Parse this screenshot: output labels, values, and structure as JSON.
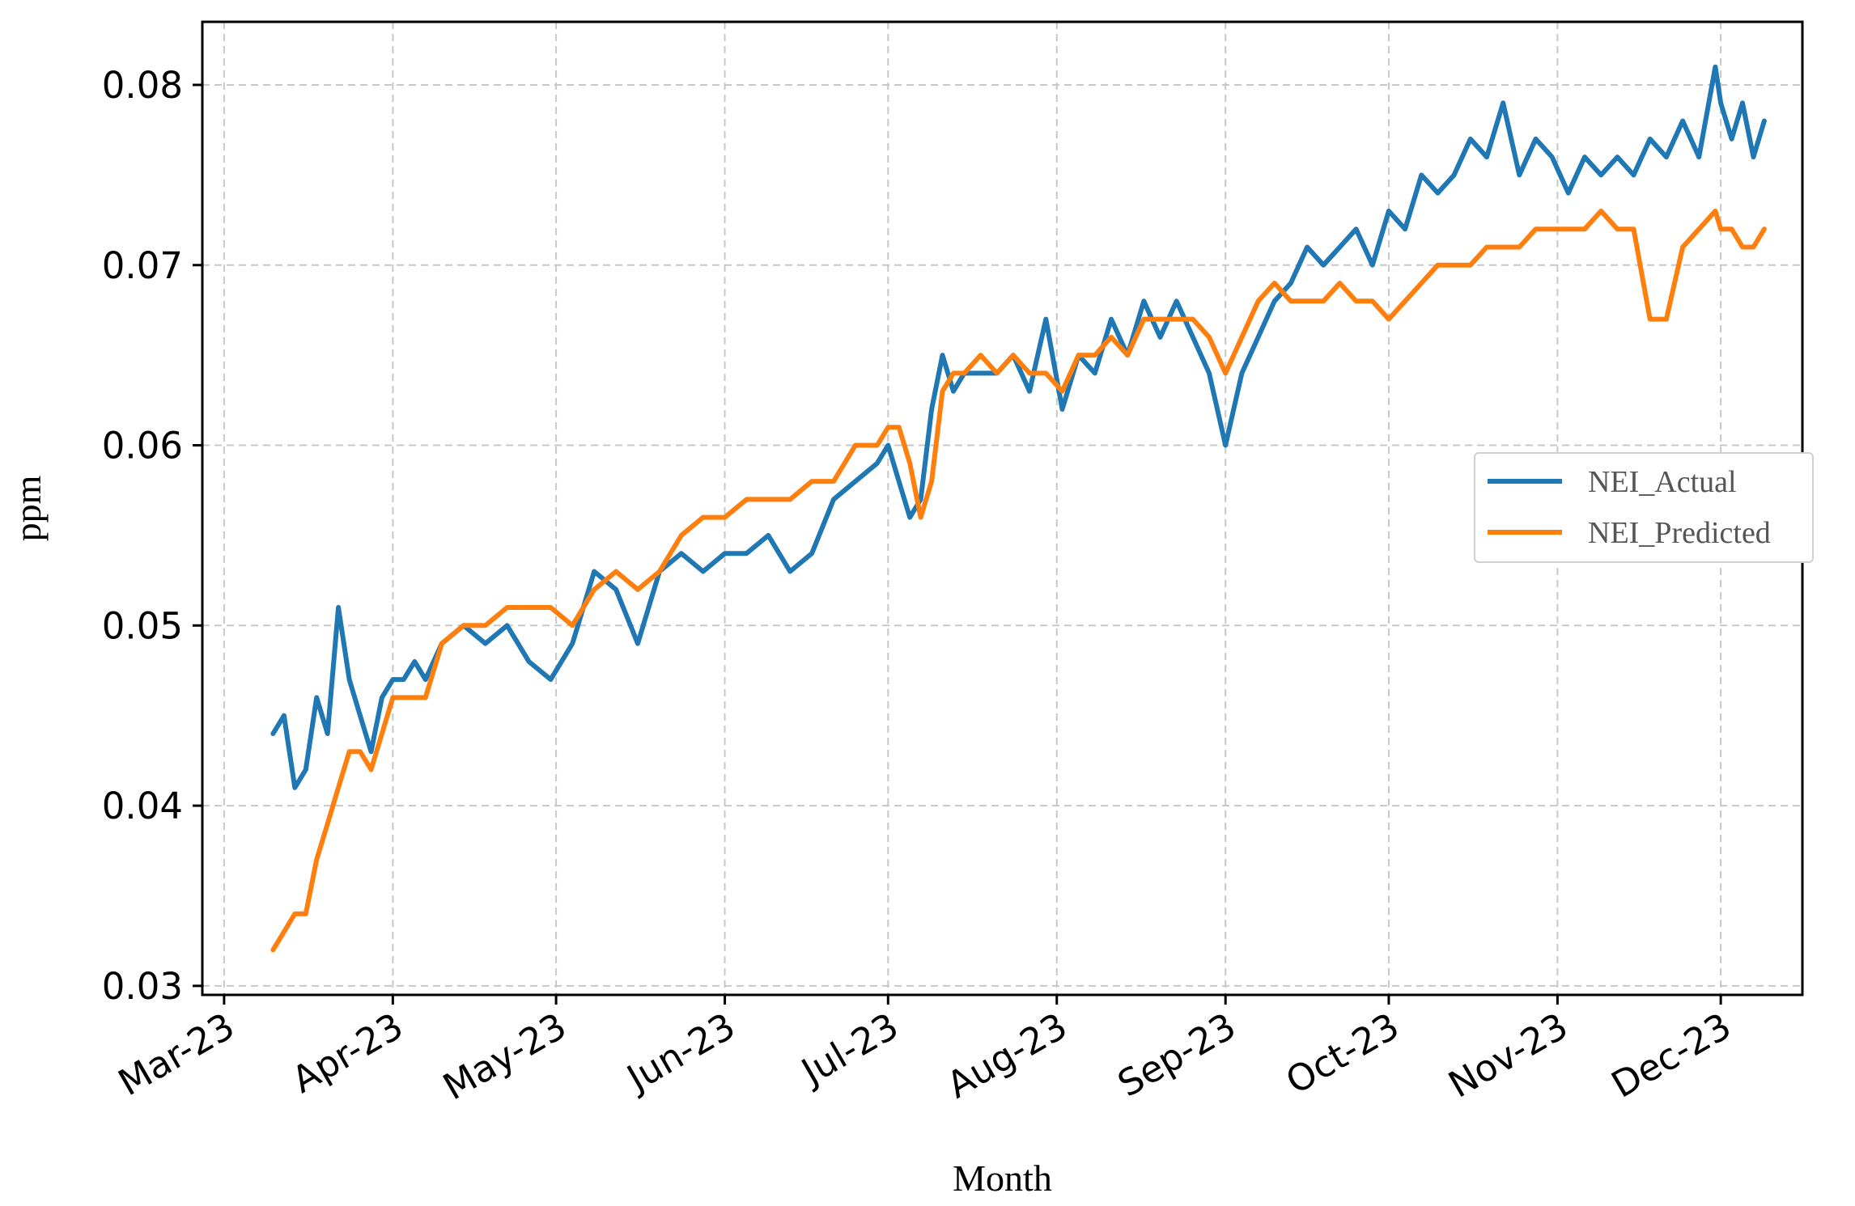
{
  "chart_data": {
    "type": "line",
    "title": "",
    "xlabel": "Month",
    "ylabel": "ppm",
    "x_ticks": [
      "2023-03-01",
      "2023-04-01",
      "2023-05-01",
      "2023-06-01",
      "2023-07-01",
      "2023-08-01",
      "2023-09-01",
      "2023-10-01",
      "2023-11-01",
      "2023-12-01"
    ],
    "x_tick_labels": [
      "Mar-23",
      "Apr-23",
      "May-23",
      "Jun-23",
      "Jul-23",
      "Aug-23",
      "Sep-23",
      "Oct-23",
      "Nov-23",
      "Dec-23"
    ],
    "xlim": [
      "2023-02-25",
      "2023-12-16"
    ],
    "y_ticks": [
      0.03,
      0.04,
      0.05,
      0.06,
      0.07,
      0.08
    ],
    "y_tick_labels": [
      "0.03",
      "0.04",
      "0.05",
      "0.06",
      "0.07",
      "0.08"
    ],
    "ylim": [
      0.0295,
      0.0835
    ],
    "grid": true,
    "legend_position": "center-right",
    "colors": {
      "NEI_Actual": "#1f77b4",
      "NEI_Predicted": "#ff7f0e"
    },
    "series": [
      {
        "name": "NEI_Actual",
        "x": [
          "2023-03-10",
          "2023-03-12",
          "2023-03-14",
          "2023-03-16",
          "2023-03-18",
          "2023-03-20",
          "2023-03-22",
          "2023-03-24",
          "2023-03-26",
          "2023-03-28",
          "2023-03-30",
          "2023-04-01",
          "2023-04-03",
          "2023-04-05",
          "2023-04-07",
          "2023-04-10",
          "2023-04-14",
          "2023-04-18",
          "2023-04-22",
          "2023-04-26",
          "2023-04-30",
          "2023-05-04",
          "2023-05-08",
          "2023-05-12",
          "2023-05-16",
          "2023-05-20",
          "2023-05-24",
          "2023-05-28",
          "2023-06-01",
          "2023-06-05",
          "2023-06-09",
          "2023-06-13",
          "2023-06-17",
          "2023-06-21",
          "2023-06-25",
          "2023-06-29",
          "2023-07-01",
          "2023-07-03",
          "2023-07-05",
          "2023-07-07",
          "2023-07-09",
          "2023-07-11",
          "2023-07-13",
          "2023-07-15",
          "2023-07-18",
          "2023-07-21",
          "2023-07-24",
          "2023-07-27",
          "2023-07-30",
          "2023-08-02",
          "2023-08-05",
          "2023-08-08",
          "2023-08-11",
          "2023-08-14",
          "2023-08-17",
          "2023-08-20",
          "2023-08-23",
          "2023-08-26",
          "2023-08-29",
          "2023-09-01",
          "2023-09-04",
          "2023-09-07",
          "2023-09-10",
          "2023-09-13",
          "2023-09-16",
          "2023-09-19",
          "2023-09-22",
          "2023-09-25",
          "2023-09-28",
          "2023-10-01",
          "2023-10-04",
          "2023-10-07",
          "2023-10-10",
          "2023-10-13",
          "2023-10-16",
          "2023-10-19",
          "2023-10-22",
          "2023-10-25",
          "2023-10-28",
          "2023-10-31",
          "2023-11-03",
          "2023-11-06",
          "2023-11-09",
          "2023-11-12",
          "2023-11-15",
          "2023-11-18",
          "2023-11-21",
          "2023-11-24",
          "2023-11-27",
          "2023-11-30",
          "2023-12-01",
          "2023-12-03",
          "2023-12-05",
          "2023-12-07",
          "2023-12-09"
        ],
        "values": [
          0.044,
          0.045,
          0.041,
          0.042,
          0.046,
          0.044,
          0.051,
          0.047,
          0.045,
          0.043,
          0.046,
          0.047,
          0.047,
          0.048,
          0.047,
          0.049,
          0.05,
          0.049,
          0.05,
          0.048,
          0.047,
          0.049,
          0.053,
          0.052,
          0.049,
          0.053,
          0.054,
          0.053,
          0.054,
          0.054,
          0.055,
          0.053,
          0.054,
          0.057,
          0.058,
          0.059,
          0.06,
          0.058,
          0.056,
          0.057,
          0.062,
          0.065,
          0.063,
          0.064,
          0.064,
          0.064,
          0.065,
          0.063,
          0.067,
          0.062,
          0.065,
          0.064,
          0.067,
          0.065,
          0.068,
          0.066,
          0.068,
          0.066,
          0.064,
          0.06,
          0.064,
          0.066,
          0.068,
          0.069,
          0.071,
          0.07,
          0.071,
          0.072,
          0.07,
          0.073,
          0.072,
          0.075,
          0.074,
          0.075,
          0.077,
          0.076,
          0.079,
          0.075,
          0.077,
          0.076,
          0.074,
          0.076,
          0.075,
          0.076,
          0.075,
          0.077,
          0.076,
          0.078,
          0.076,
          0.081,
          0.079,
          0.077,
          0.079,
          0.076,
          0.078
        ]
      },
      {
        "name": "NEI_Predicted",
        "x": [
          "2023-03-10",
          "2023-03-12",
          "2023-03-14",
          "2023-03-16",
          "2023-03-18",
          "2023-03-20",
          "2023-03-22",
          "2023-03-24",
          "2023-03-26",
          "2023-03-28",
          "2023-03-30",
          "2023-04-01",
          "2023-04-03",
          "2023-04-05",
          "2023-04-07",
          "2023-04-10",
          "2023-04-14",
          "2023-04-18",
          "2023-04-22",
          "2023-04-26",
          "2023-04-30",
          "2023-05-04",
          "2023-05-08",
          "2023-05-12",
          "2023-05-16",
          "2023-05-20",
          "2023-05-24",
          "2023-05-28",
          "2023-06-01",
          "2023-06-05",
          "2023-06-09",
          "2023-06-13",
          "2023-06-17",
          "2023-06-21",
          "2023-06-25",
          "2023-06-29",
          "2023-07-01",
          "2023-07-03",
          "2023-07-05",
          "2023-07-07",
          "2023-07-09",
          "2023-07-11",
          "2023-07-13",
          "2023-07-15",
          "2023-07-18",
          "2023-07-21",
          "2023-07-24",
          "2023-07-27",
          "2023-07-30",
          "2023-08-02",
          "2023-08-05",
          "2023-08-08",
          "2023-08-11",
          "2023-08-14",
          "2023-08-17",
          "2023-08-20",
          "2023-08-23",
          "2023-08-26",
          "2023-08-29",
          "2023-09-01",
          "2023-09-04",
          "2023-09-07",
          "2023-09-10",
          "2023-09-13",
          "2023-09-16",
          "2023-09-19",
          "2023-09-22",
          "2023-09-25",
          "2023-09-28",
          "2023-10-01",
          "2023-10-04",
          "2023-10-07",
          "2023-10-10",
          "2023-10-13",
          "2023-10-16",
          "2023-10-19",
          "2023-10-22",
          "2023-10-25",
          "2023-10-28",
          "2023-10-31",
          "2023-11-03",
          "2023-11-06",
          "2023-11-09",
          "2023-11-12",
          "2023-11-15",
          "2023-11-18",
          "2023-11-21",
          "2023-11-24",
          "2023-11-27",
          "2023-11-30",
          "2023-12-01",
          "2023-12-03",
          "2023-12-05",
          "2023-12-07",
          "2023-12-09"
        ],
        "values": [
          0.032,
          0.033,
          0.034,
          0.034,
          0.037,
          0.039,
          0.041,
          0.043,
          0.043,
          0.042,
          0.044,
          0.046,
          0.046,
          0.046,
          0.046,
          0.049,
          0.05,
          0.05,
          0.051,
          0.051,
          0.051,
          0.05,
          0.052,
          0.053,
          0.052,
          0.053,
          0.055,
          0.056,
          0.056,
          0.057,
          0.057,
          0.057,
          0.058,
          0.058,
          0.06,
          0.06,
          0.061,
          0.061,
          0.059,
          0.056,
          0.058,
          0.063,
          0.064,
          0.064,
          0.065,
          0.064,
          0.065,
          0.064,
          0.064,
          0.063,
          0.065,
          0.065,
          0.066,
          0.065,
          0.067,
          0.067,
          0.067,
          0.067,
          0.066,
          0.064,
          0.066,
          0.068,
          0.069,
          0.068,
          0.068,
          0.068,
          0.069,
          0.068,
          0.068,
          0.067,
          0.068,
          0.069,
          0.07,
          0.07,
          0.07,
          0.071,
          0.071,
          0.071,
          0.072,
          0.072,
          0.072,
          0.072,
          0.073,
          0.072,
          0.072,
          0.067,
          0.067,
          0.071,
          0.072,
          0.073,
          0.072,
          0.072,
          0.071,
          0.071,
          0.072
        ]
      }
    ]
  }
}
